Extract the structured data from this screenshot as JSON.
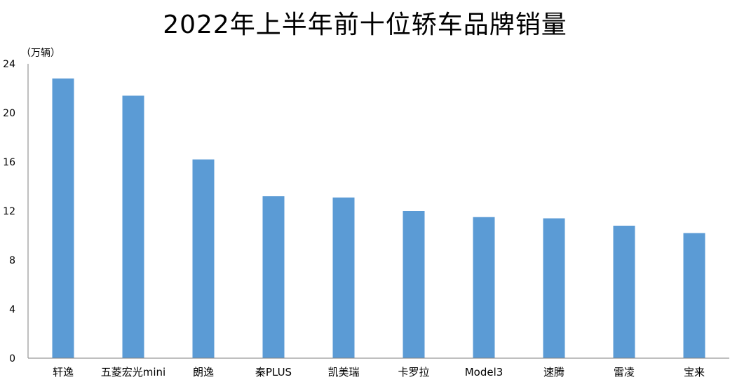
{
  "chart_data": {
    "type": "bar",
    "title": "2022年上半年前十位轿车品牌销量",
    "ylabel": "（万辆）",
    "xlabel": "",
    "categories": [
      "轩逸",
      "五菱宏光mini",
      "朗逸",
      "秦PLUS",
      "凯美瑞",
      "卡罗拉",
      "Model3",
      "速腾",
      "雷凌",
      "宝来"
    ],
    "values": [
      22.8,
      21.4,
      16.2,
      13.2,
      13.1,
      12.0,
      11.5,
      11.4,
      10.8,
      10.2
    ],
    "ylim": [
      0,
      24
    ],
    "yticks": [
      0,
      4,
      8,
      12,
      16,
      20,
      24
    ],
    "grid": false,
    "legend": "none",
    "bar_color": "#5b9bd5",
    "axis_color": "#7f7f7f"
  }
}
